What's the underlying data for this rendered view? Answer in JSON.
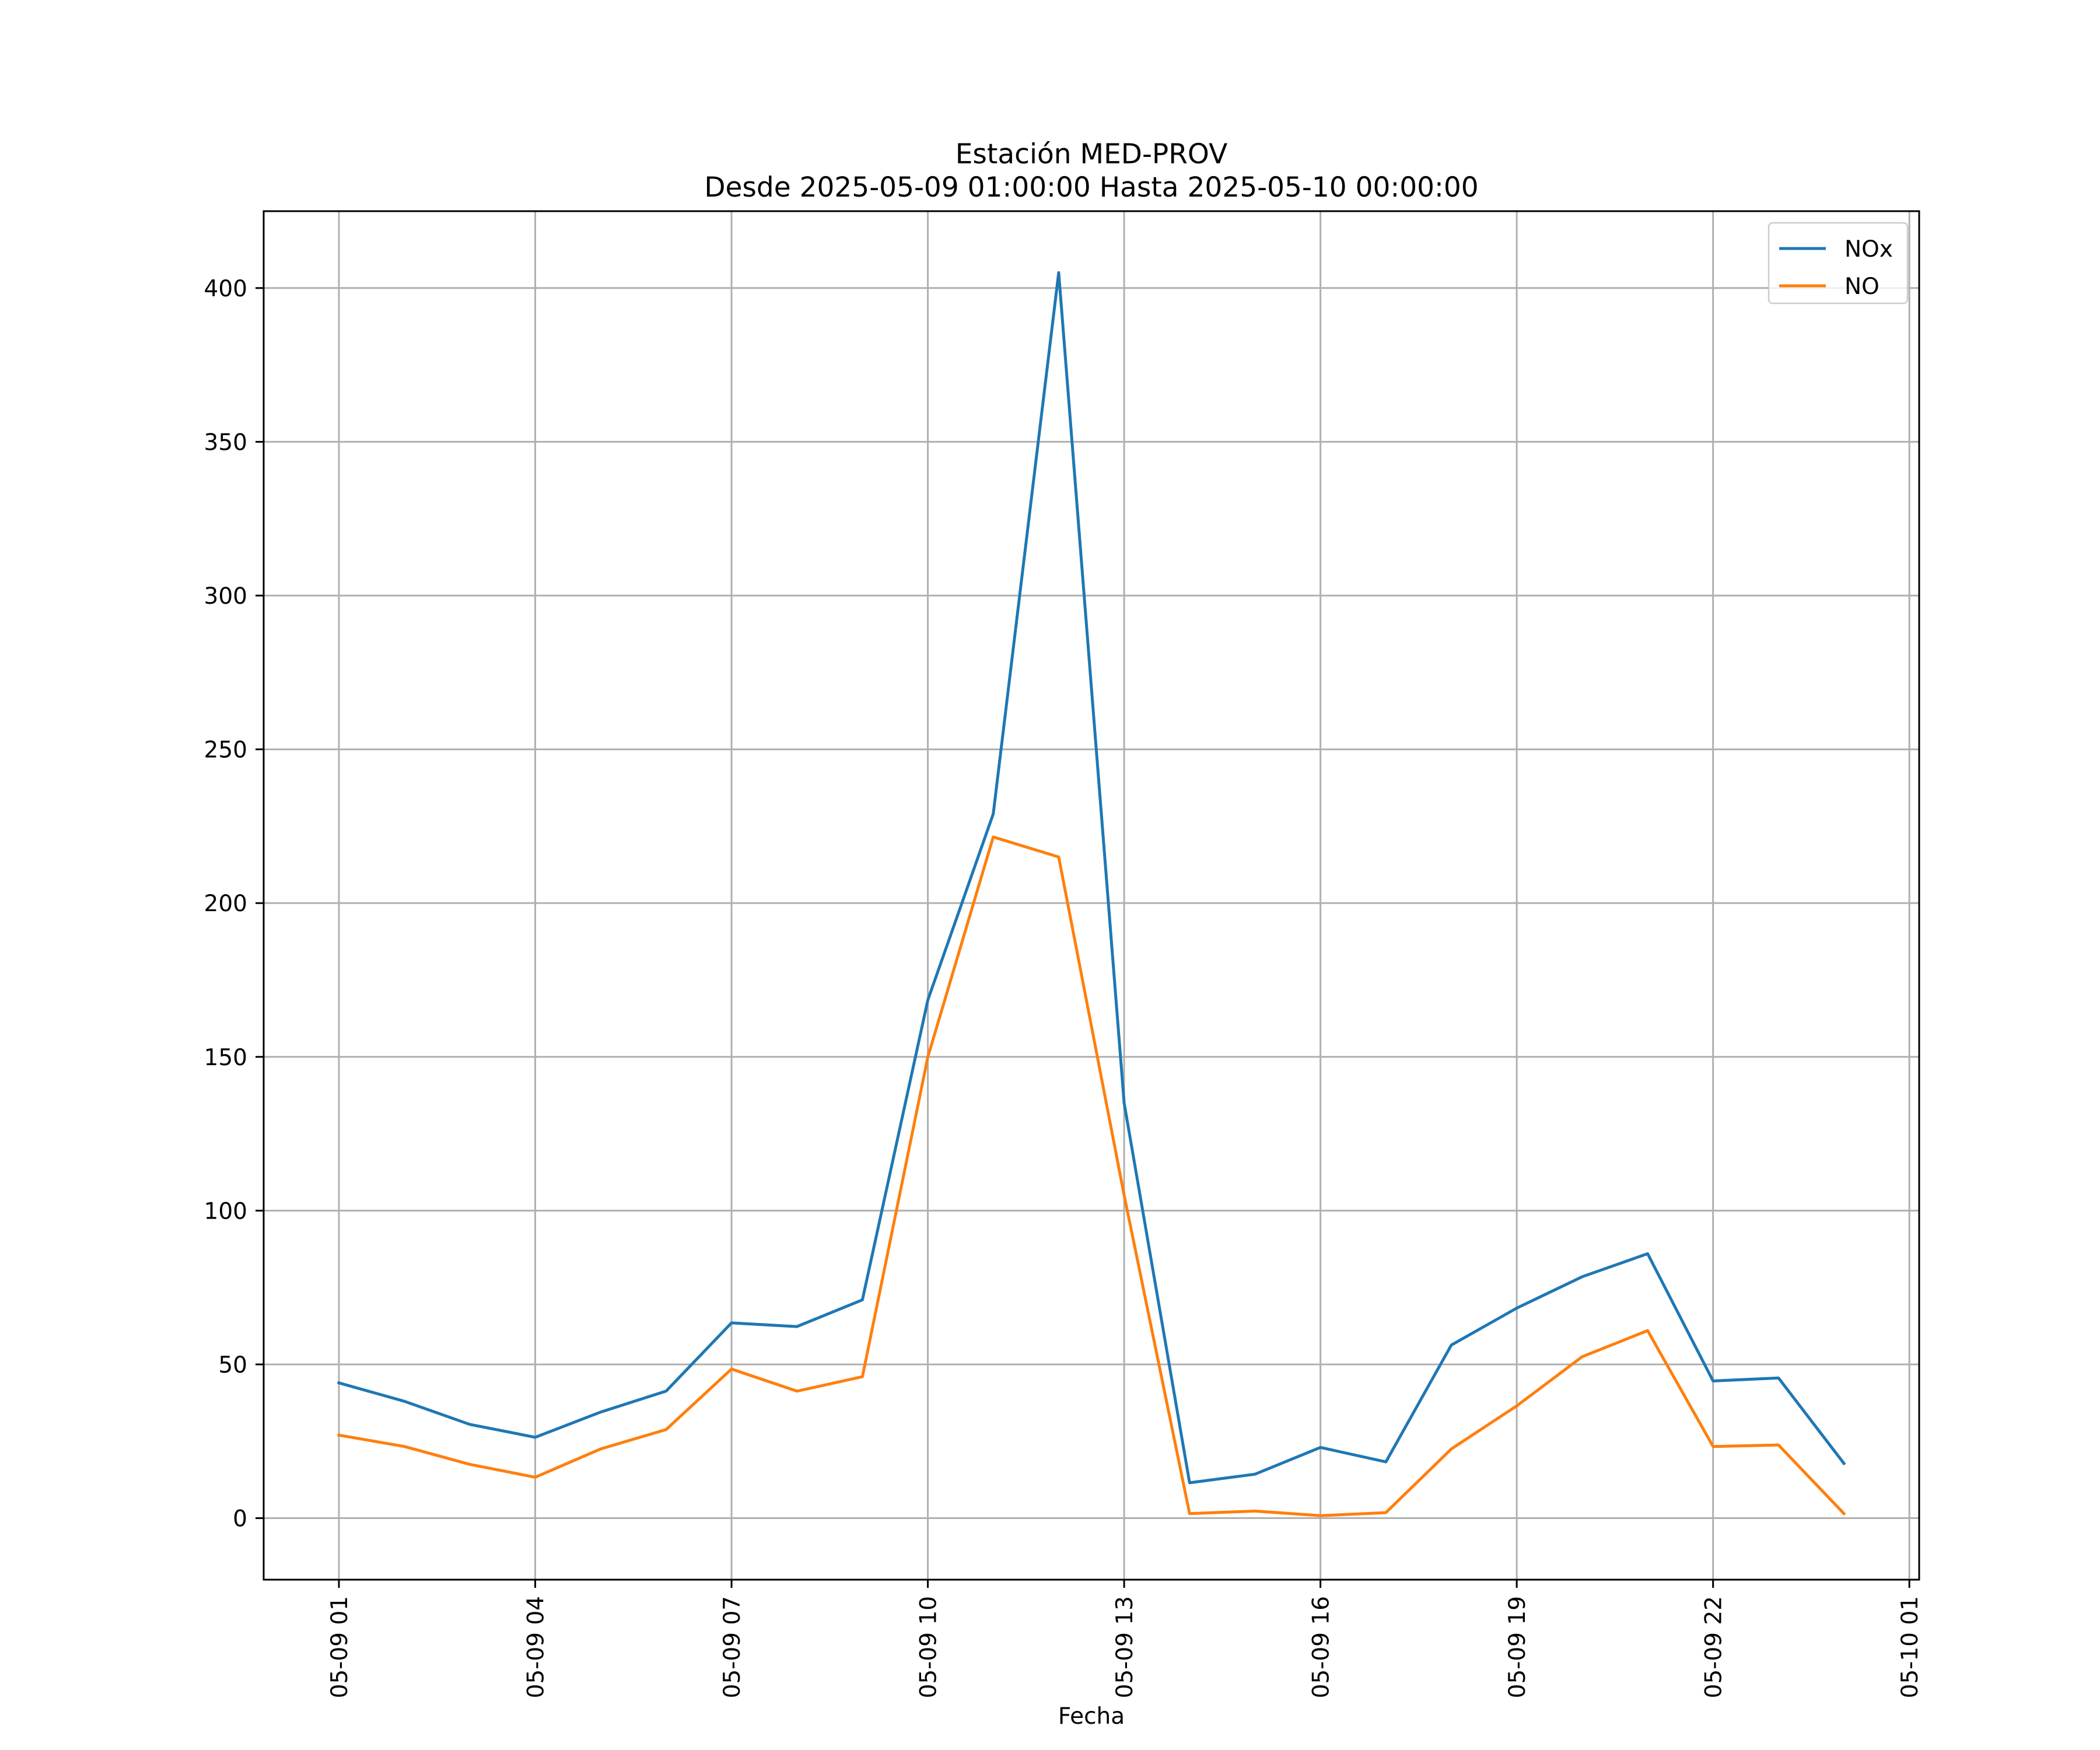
{
  "chart_data": {
    "type": "line",
    "title": "Estación MED-PROV",
    "subtitle": "Desde 2025-05-09 01:00:00 Hasta 2025-05-10 00:00:00",
    "xlabel": "Fecha",
    "ylabel": "",
    "x": [
      "2025-05-09 01:00",
      "2025-05-09 02:00",
      "2025-05-09 03:00",
      "2025-05-09 04:00",
      "2025-05-09 05:00",
      "2025-05-09 06:00",
      "2025-05-09 07:00",
      "2025-05-09 08:00",
      "2025-05-09 09:00",
      "2025-05-09 10:00",
      "2025-05-09 11:00",
      "2025-05-09 12:00",
      "2025-05-09 13:00",
      "2025-05-09 14:00",
      "2025-05-09 15:00",
      "2025-05-09 16:00",
      "2025-05-09 17:00",
      "2025-05-09 18:00",
      "2025-05-09 19:00",
      "2025-05-09 20:00",
      "2025-05-09 21:00",
      "2025-05-09 22:00",
      "2025-05-09 23:00",
      "2025-05-10 00:00"
    ],
    "series": [
      {
        "name": "NOx",
        "color": "#1f77b4",
        "values": [
          44,
          38,
          30.5,
          26.3,
          34.5,
          41.3,
          63.5,
          62.3,
          71,
          168.5,
          229,
          405,
          135,
          11.5,
          14.3,
          23,
          18.3,
          56.3,
          68.3,
          78.5,
          86,
          44.6,
          45.6,
          17.8
        ]
      },
      {
        "name": "NO",
        "color": "#ff7f0e",
        "values": [
          27,
          23.3,
          17.5,
          13.3,
          22.5,
          28.8,
          48.5,
          41.3,
          46,
          150,
          221.5,
          215,
          105,
          1.5,
          2.3,
          0.8,
          1.8,
          22.5,
          36.5,
          52.5,
          61,
          23.3,
          23.8,
          1.5
        ]
      }
    ],
    "xticks": [
      {
        "date": "2025-05-09 01:00",
        "label": "05-09 01"
      },
      {
        "date": "2025-05-09 04:00",
        "label": "05-09 04"
      },
      {
        "date": "2025-05-09 07:00",
        "label": "05-09 07"
      },
      {
        "date": "2025-05-09 10:00",
        "label": "05-09 10"
      },
      {
        "date": "2025-05-09 13:00",
        "label": "05-09 13"
      },
      {
        "date": "2025-05-09 16:00",
        "label": "05-09 16"
      },
      {
        "date": "2025-05-09 19:00",
        "label": "05-09 19"
      },
      {
        "date": "2025-05-09 22:00",
        "label": "05-09 22"
      },
      {
        "date": "2025-05-10 01:00",
        "label": "05-10 01"
      }
    ],
    "yticks": [
      0,
      50,
      100,
      150,
      200,
      250,
      300,
      350,
      400
    ],
    "xlim": [
      "2025-05-08 23:51",
      "2025-05-10 01:09"
    ],
    "ylim": [
      -20,
      425
    ],
    "grid": true,
    "legend": "upper right"
  }
}
